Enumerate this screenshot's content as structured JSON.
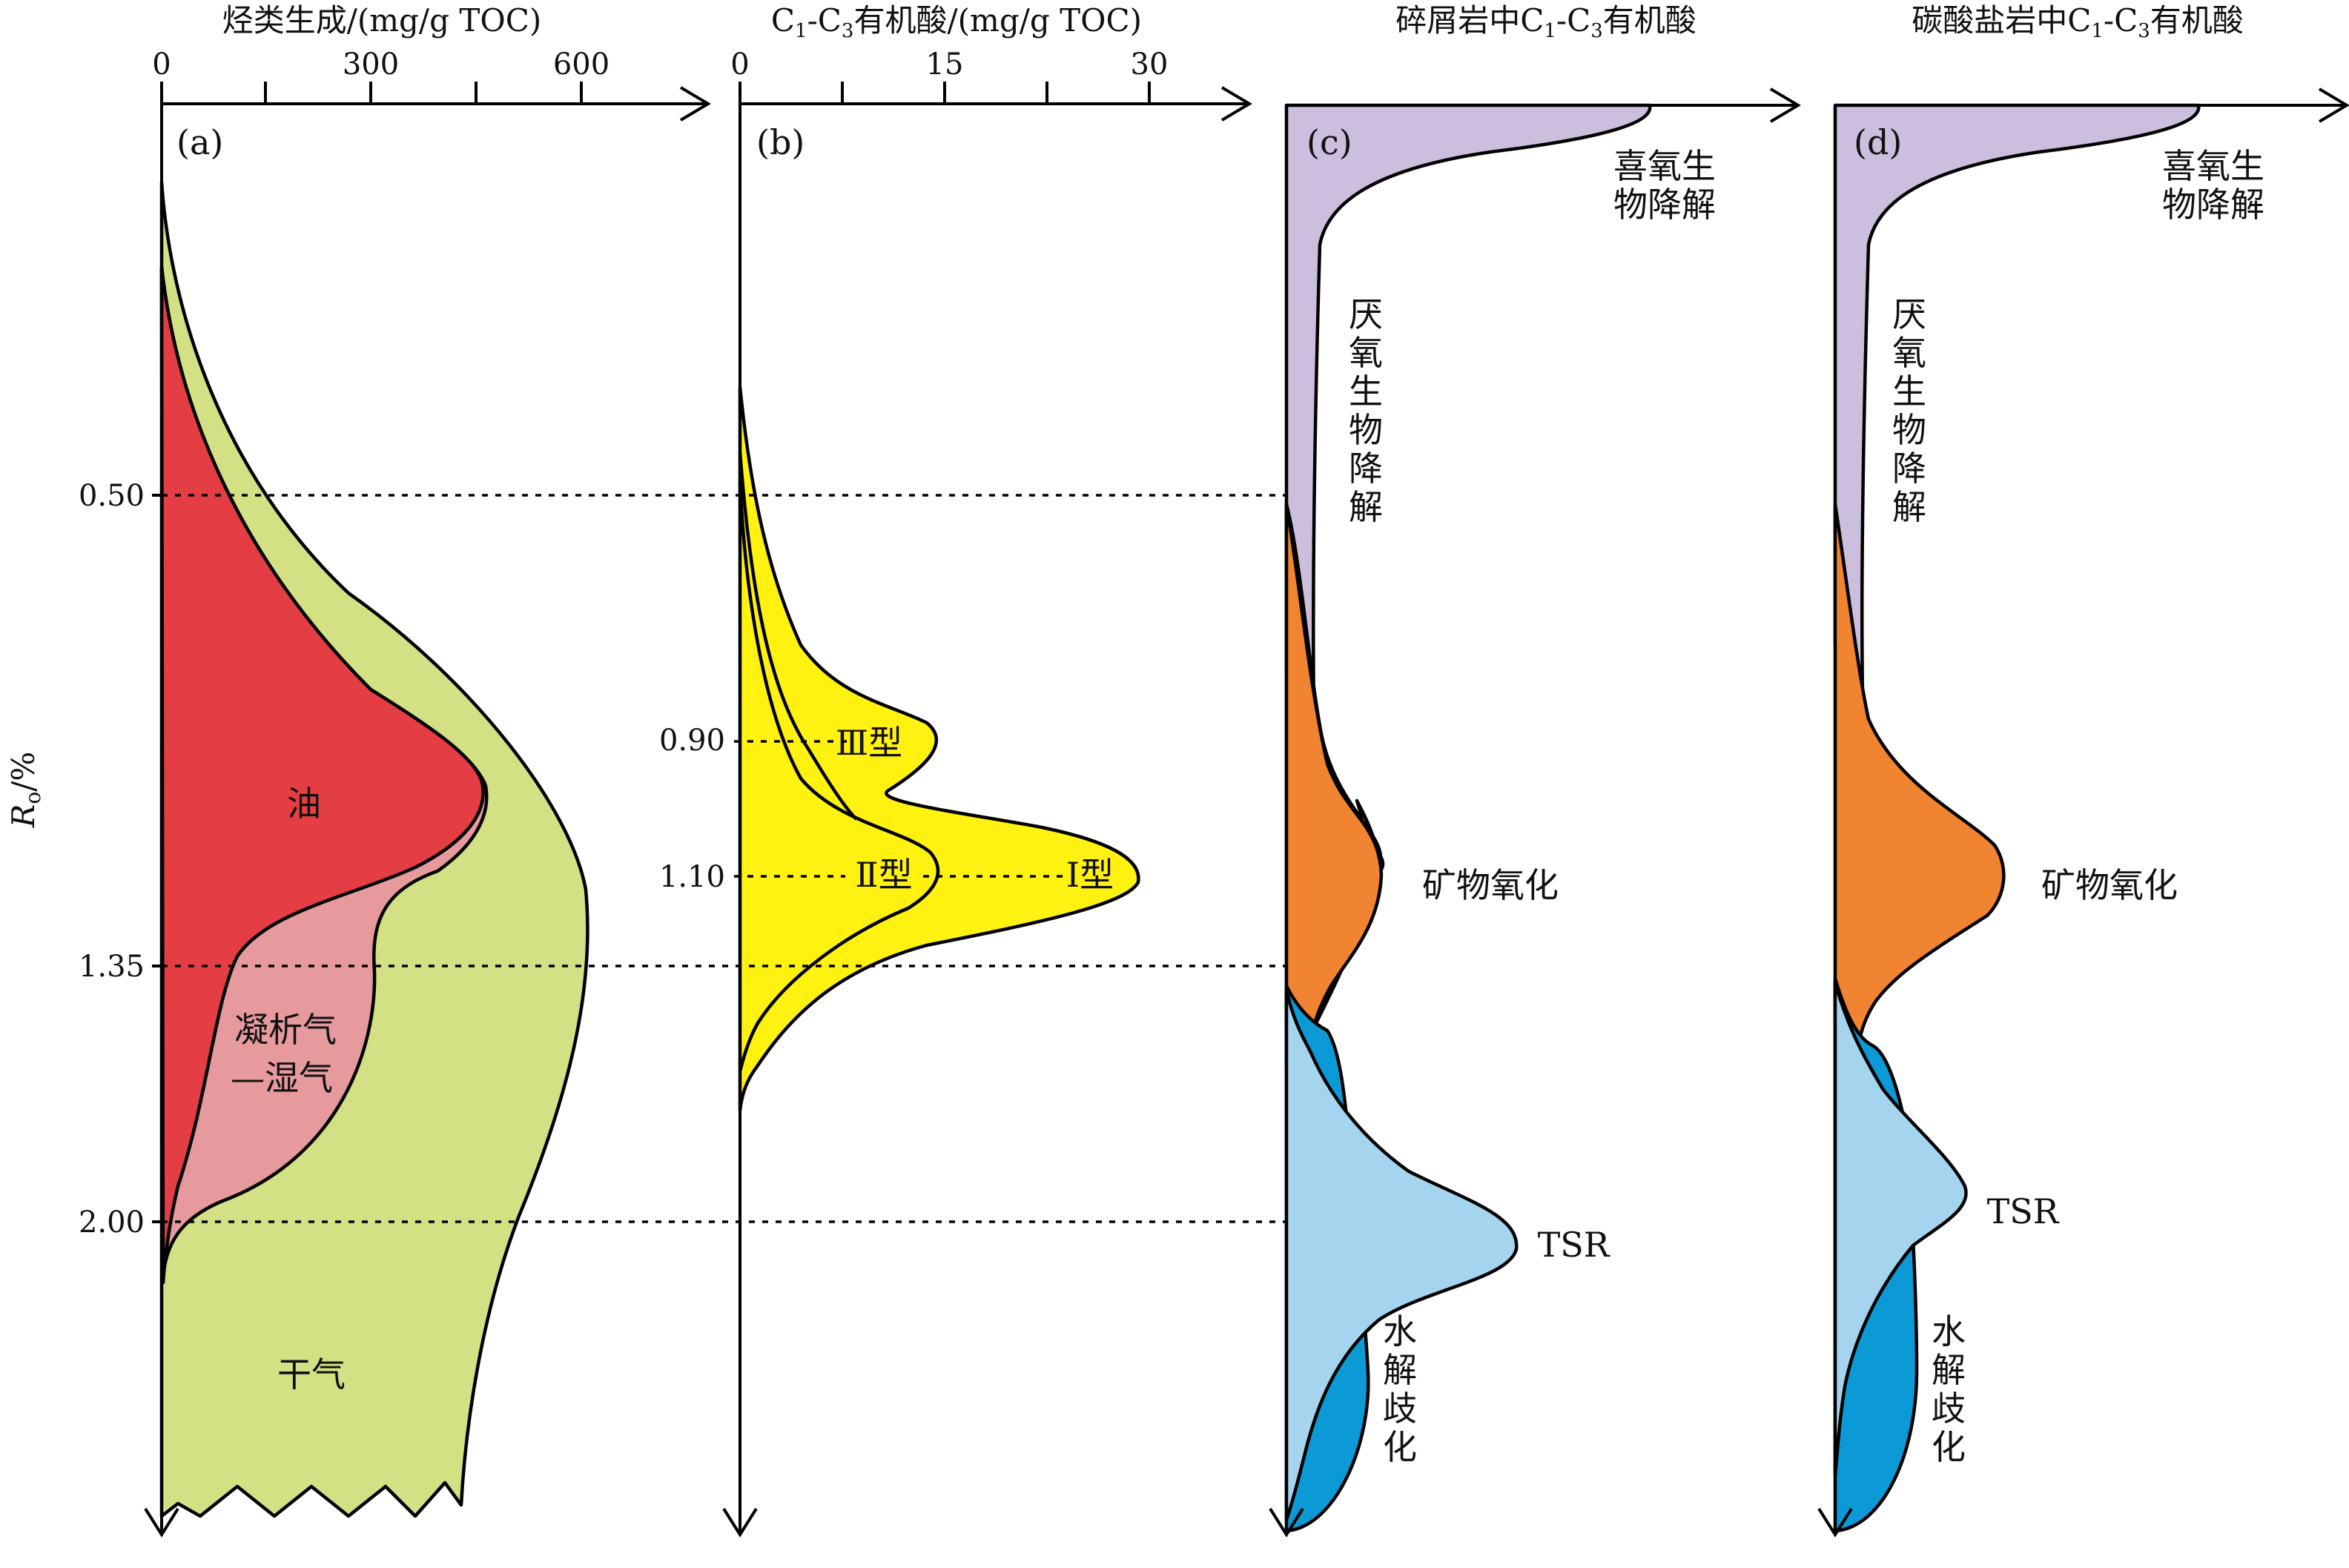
{
  "colors": {
    "oil": "#e43e44",
    "condensate_wet_gas": "#e69a9e",
    "dry_gas": "#d3e084",
    "organic_acid": "#fff210",
    "aerobic": "#ccbfde",
    "mineral_oxidation": "#f08431",
    "tsr": "#a5d5ee",
    "hydrolysis": "#0c9ad6"
  },
  "panel_a": {
    "title": "烃类生成/(mg/g TOC)",
    "ticks": [
      "0",
      "300",
      "600"
    ],
    "letter": "(a)",
    "label_oil": "油",
    "label_condensate_1": "凝析气",
    "label_condensate_2": "—湿气",
    "label_dry_gas": "干气"
  },
  "panel_b": {
    "title_pre": "C",
    "title_sub1": "1",
    "title_mid": "-C",
    "title_sub2": "3",
    "title_post": "有机酸/(mg/g TOC)",
    "ticks": [
      "0",
      "15",
      "30"
    ],
    "letter": "(b)",
    "label_type3": "Ⅲ型",
    "label_type2": "Ⅱ型",
    "label_type1": "Ⅰ型",
    "ro_090": "0.90",
    "ro_110": "1.10"
  },
  "panel_c": {
    "title_pre": "碎屑岩中C",
    "title_sub1": "1",
    "title_mid": "-C",
    "title_sub2": "3",
    "title_post": "有机酸",
    "letter": "(c)",
    "aerobic_1": "喜氧生",
    "aerobic_2": "物降解",
    "anaerobic_1": "厌",
    "anaerobic_2": "氧",
    "anaerobic_3": "生",
    "anaerobic_4": "物",
    "anaerobic_5": "降",
    "anaerobic_6": "解",
    "mineral": "矿物氧化",
    "tsr": "TSR",
    "hydro_1": "水",
    "hydro_2": "解",
    "hydro_3": "歧",
    "hydro_4": "化"
  },
  "panel_d": {
    "title_pre": "碳酸盐岩中C",
    "title_sub1": "1",
    "title_mid": "-C",
    "title_sub2": "3",
    "title_post": "有机酸",
    "letter": "(d)",
    "aerobic_1": "喜氧生",
    "aerobic_2": "物降解",
    "anaerobic_1": "厌",
    "anaerobic_2": "氧",
    "anaerobic_3": "生",
    "anaerobic_4": "物",
    "anaerobic_5": "降",
    "anaerobic_6": "解",
    "mineral": "矿物氧化",
    "tsr": "TSR",
    "hydro_1": "水",
    "hydro_2": "解",
    "hydro_3": "歧",
    "hydro_4": "化"
  },
  "y_axis": {
    "label_main": "R",
    "label_sub": "o",
    "label_unit": "/%",
    "ticks": [
      "0.50",
      "1.35",
      "2.00"
    ]
  }
}
